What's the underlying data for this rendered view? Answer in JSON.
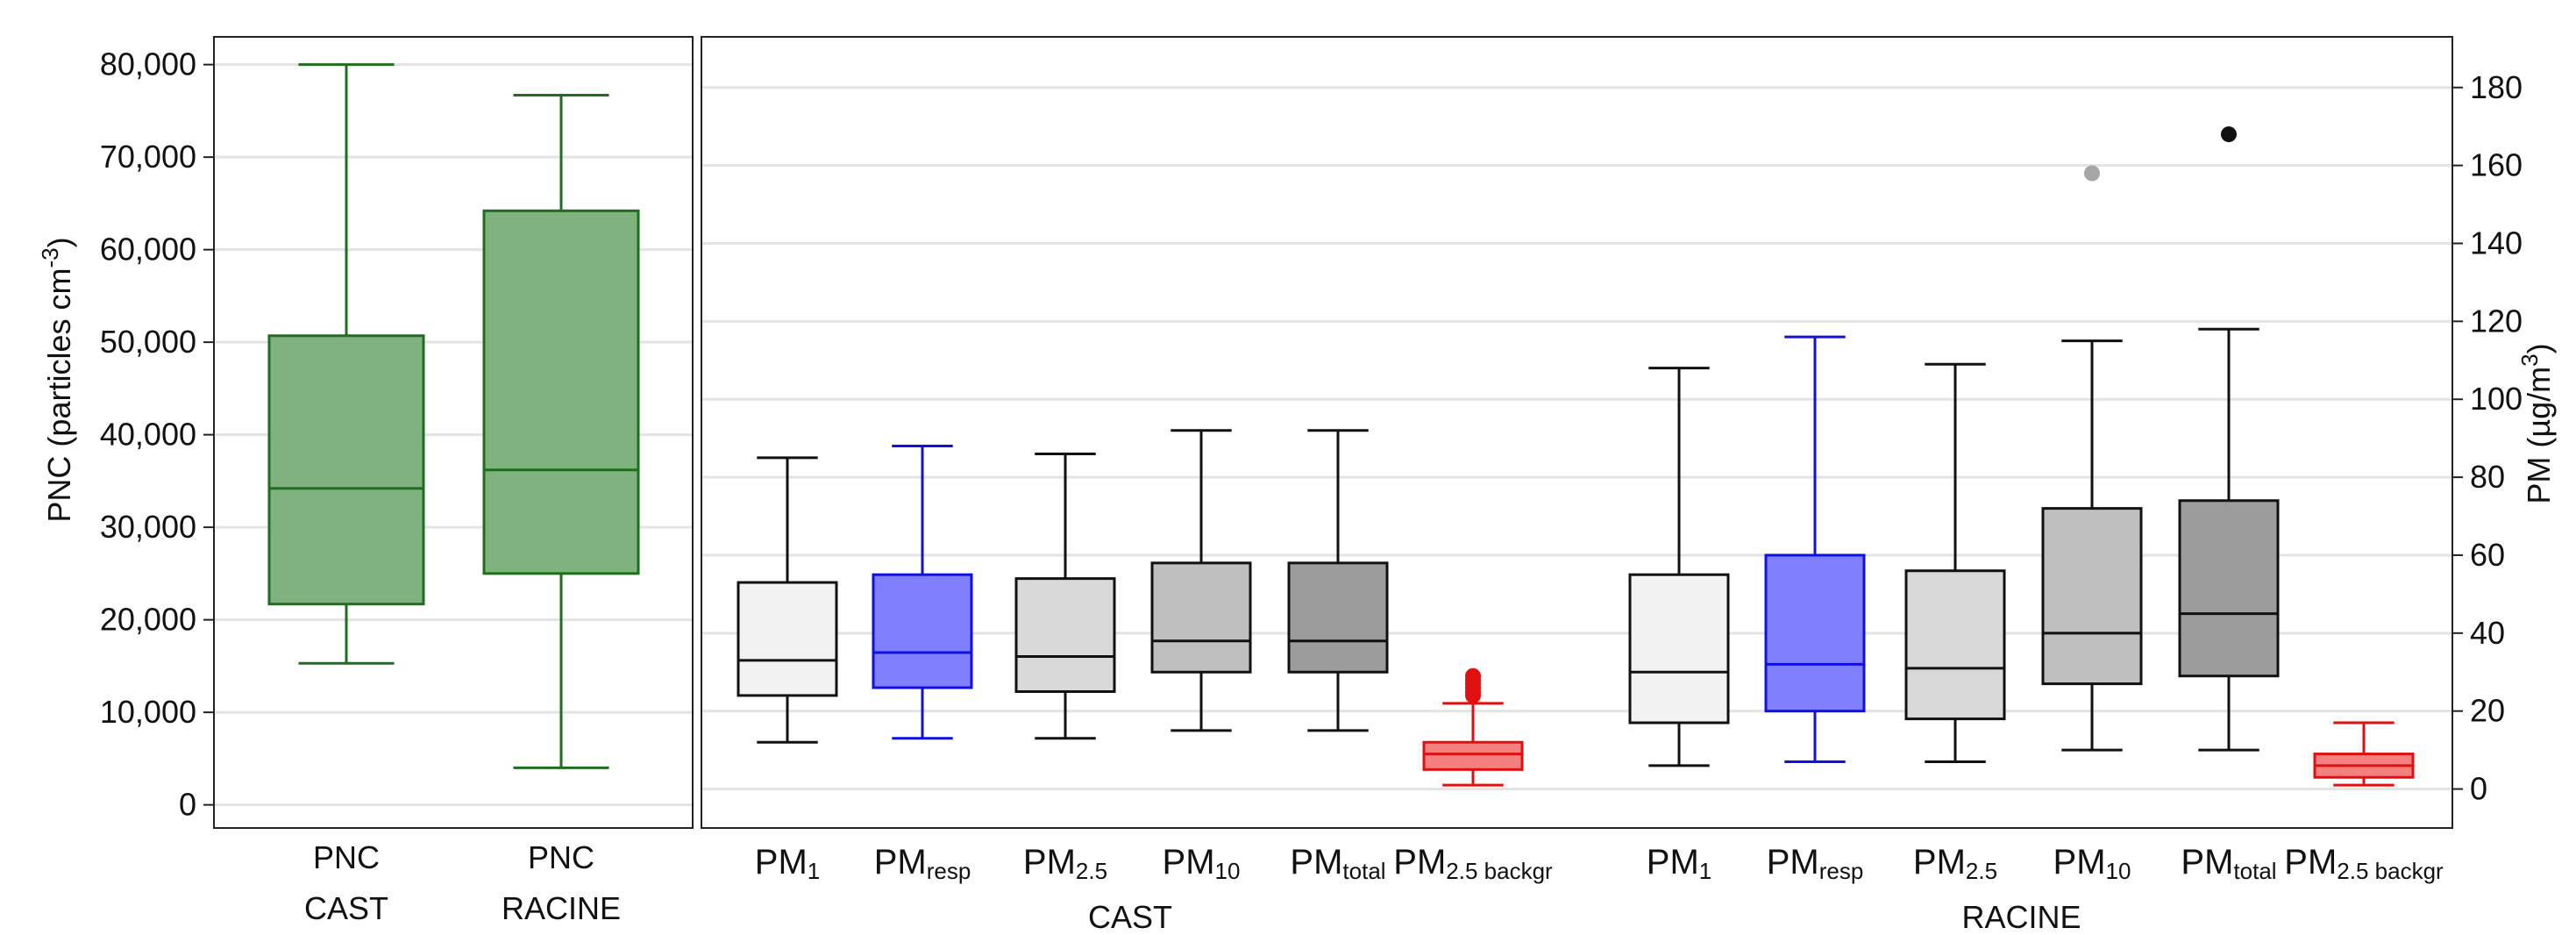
{
  "chart_data": [
    {
      "type": "box",
      "ylabel": "PNC (particles cm-3)",
      "ylim": [
        -2500,
        83000
      ],
      "yticks": [
        0,
        10000,
        20000,
        30000,
        40000,
        50000,
        60000,
        70000,
        80000
      ],
      "ytick_labels": [
        "0",
        "10,000",
        "20,000",
        "30,000",
        "40,000",
        "50,000",
        "60,000",
        "70,000",
        "80,000"
      ],
      "grid": true,
      "categories": [
        {
          "line1": "PNC",
          "line2": "CAST"
        },
        {
          "line1": "PNC",
          "line2": "RACINE"
        }
      ],
      "boxes": [
        {
          "min": 15300,
          "q1": 21700,
          "median": 34200,
          "q3": 50700,
          "max": 80000,
          "outliers": [],
          "fill": "#7fb27f",
          "stroke": "#1f6e1f"
        },
        {
          "min": 4000,
          "q1": 25000,
          "median": 36200,
          "q3": 64200,
          "max": 76700,
          "outliers": [],
          "fill": "#7fb27f",
          "stroke": "#1f6e1f"
        }
      ]
    },
    {
      "type": "box",
      "ylabel": "PM (µg/m3)",
      "ylim": [
        -10,
        193
      ],
      "yticks": [
        0,
        20,
        40,
        60,
        80,
        100,
        120,
        140,
        160,
        180
      ],
      "ytick_labels": [
        "0",
        "20",
        "40",
        "60",
        "80",
        "100",
        "120",
        "140",
        "160",
        "180"
      ],
      "grid": true,
      "groups": [
        "CAST",
        "RACINE"
      ],
      "categories": [
        {
          "main": "PM",
          "sub": "1"
        },
        {
          "main": "PM",
          "sub": "resp"
        },
        {
          "main": "PM",
          "sub": "2.5"
        },
        {
          "main": "PM",
          "sub": "10"
        },
        {
          "main": "PM",
          "sub": "total"
        },
        {
          "main": "PM",
          "sub": "2.5 backgr"
        },
        {
          "main": "PM",
          "sub": "1"
        },
        {
          "main": "PM",
          "sub": "resp"
        },
        {
          "main": "PM",
          "sub": "2.5"
        },
        {
          "main": "PM",
          "sub": "10"
        },
        {
          "main": "PM",
          "sub": "total"
        },
        {
          "main": "PM",
          "sub": "2.5 backgr"
        }
      ],
      "boxes": [
        {
          "group": "CAST",
          "min": 12,
          "q1": 24,
          "median": 33,
          "q3": 53,
          "max": 85,
          "outliers": [],
          "fill": "#f2f2f2",
          "stroke": "#111111"
        },
        {
          "group": "CAST",
          "min": 13,
          "q1": 26,
          "median": 35,
          "q3": 55,
          "max": 88,
          "outliers": [],
          "fill": "#8080ff",
          "stroke": "#1010e0"
        },
        {
          "group": "CAST",
          "min": 13,
          "q1": 25,
          "median": 34,
          "q3": 54,
          "max": 86,
          "outliers": [],
          "fill": "#d9d9d9",
          "stroke": "#111111"
        },
        {
          "group": "CAST",
          "min": 15,
          "q1": 30,
          "median": 38,
          "q3": 58,
          "max": 92,
          "outliers": [],
          "fill": "#bfbfbf",
          "stroke": "#111111"
        },
        {
          "group": "CAST",
          "min": 15,
          "q1": 30,
          "median": 38,
          "q3": 58,
          "max": 92,
          "outliers": [],
          "fill": "#9c9c9c",
          "stroke": "#111111"
        },
        {
          "group": "CAST",
          "min": 1,
          "q1": 5,
          "median": 9,
          "q3": 12,
          "max": 22,
          "outliers": [
            24,
            25,
            26,
            27,
            28,
            29
          ],
          "fill": "#f58080",
          "stroke": "#e01010"
        },
        {
          "group": "RACINE",
          "min": 6,
          "q1": 17,
          "median": 30,
          "q3": 55,
          "max": 108,
          "outliers": [],
          "fill": "#f2f2f2",
          "stroke": "#111111"
        },
        {
          "group": "RACINE",
          "min": 7,
          "q1": 20,
          "median": 32,
          "q3": 60,
          "max": 116,
          "outliers": [],
          "fill": "#8080ff",
          "stroke": "#1010e0"
        },
        {
          "group": "RACINE",
          "min": 7,
          "q1": 18,
          "median": 31,
          "q3": 56,
          "max": 109,
          "outliers": [],
          "fill": "#d9d9d9",
          "stroke": "#111111"
        },
        {
          "group": "RACINE",
          "min": 10,
          "q1": 27,
          "median": 40,
          "q3": 72,
          "max": 115,
          "outliers": [
            158
          ],
          "outlier_color": "#a6a6a6",
          "fill": "#bfbfbf",
          "stroke": "#111111"
        },
        {
          "group": "RACINE",
          "min": 10,
          "q1": 29,
          "median": 45,
          "q3": 74,
          "max": 118,
          "outliers": [
            168
          ],
          "outlier_color": "#111111",
          "fill": "#9c9c9c",
          "stroke": "#111111"
        },
        {
          "group": "RACINE",
          "min": 1,
          "q1": 3,
          "median": 6,
          "q3": 9,
          "max": 17,
          "outliers": [],
          "fill": "#f58080",
          "stroke": "#e01010"
        }
      ]
    }
  ],
  "colors": {
    "grid": "#e3e3e3",
    "frame": "#222222"
  }
}
